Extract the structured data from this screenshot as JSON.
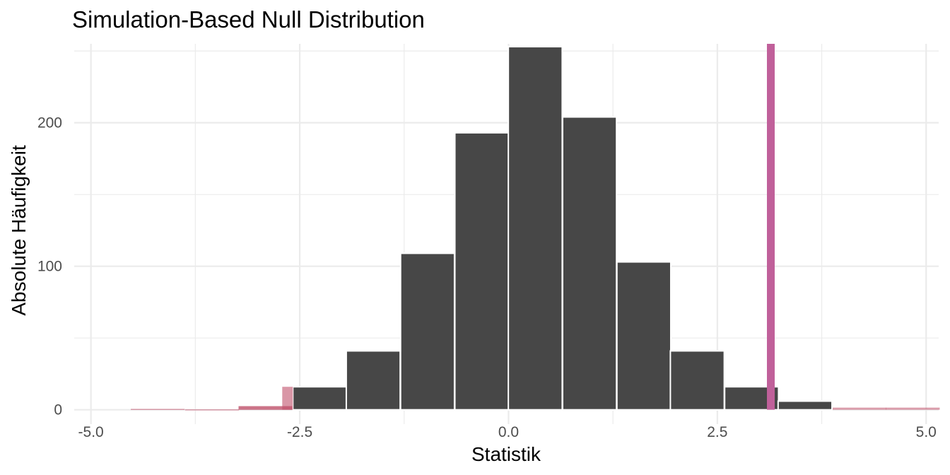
{
  "chart_data": {
    "type": "bar",
    "title": "Simulation-Based Null Distribution",
    "xlabel": "Statistik",
    "ylabel": "Absolute Häufigkeit",
    "xlim": [
      -5.2,
      5.15
    ],
    "ylim": [
      -10,
      255
    ],
    "x_ticks": [
      -5.0,
      -2.5,
      0.0,
      2.5,
      5.0
    ],
    "x_tick_labels": [
      "-5.0",
      "-2.5",
      "0.0",
      "2.5",
      "5.0"
    ],
    "y_ticks": [
      0,
      100,
      200
    ],
    "y_tick_labels": [
      "0",
      "100",
      "200"
    ],
    "grid": true,
    "bin_width": 0.645,
    "bins": [
      {
        "center": -4.2,
        "count": 0,
        "shaded": true
      },
      {
        "center": -3.55,
        "count": 0,
        "shaded": false
      },
      {
        "center": -2.91,
        "count": 0,
        "shaded": false
      },
      {
        "center": -2.26,
        "count": 16,
        "shaded": false
      },
      {
        "center": -1.62,
        "count": 41,
        "shaded": false
      },
      {
        "center": -0.97,
        "count": 109,
        "shaded": false
      },
      {
        "center": -0.32,
        "count": 193,
        "shaded": false
      },
      {
        "center": 0.32,
        "count": 253,
        "shaded": false
      },
      {
        "center": 0.97,
        "count": 204,
        "shaded": false
      },
      {
        "center": 1.62,
        "count": 103,
        "shaded": false
      },
      {
        "center": 2.26,
        "count": 41,
        "shaded": false
      },
      {
        "center": 2.91,
        "count": 16,
        "shaded": false
      },
      {
        "center": 3.55,
        "count": 6,
        "shaded": false
      }
    ],
    "shaded_regions": [
      {
        "center": -4.2,
        "count": 0.6
      },
      {
        "center": -3.55,
        "count": 0.3
      },
      {
        "center": -2.91,
        "count": 2.5
      },
      {
        "center": -2.26,
        "count": 16
      },
      {
        "center": 3.55,
        "count": 6
      },
      {
        "center": 4.2,
        "count": 1.5
      },
      {
        "center": 4.84,
        "count": 1.5
      }
    ],
    "observed_statistic": 3.14,
    "colors": {
      "bar": "#474747",
      "bar_outline": "#ffffff",
      "shade": "#c0506a",
      "observed_line": "#c0609a",
      "grid": "#ebebeb",
      "axis_text": "#4d4d4d",
      "title_text": "#000000"
    }
  }
}
